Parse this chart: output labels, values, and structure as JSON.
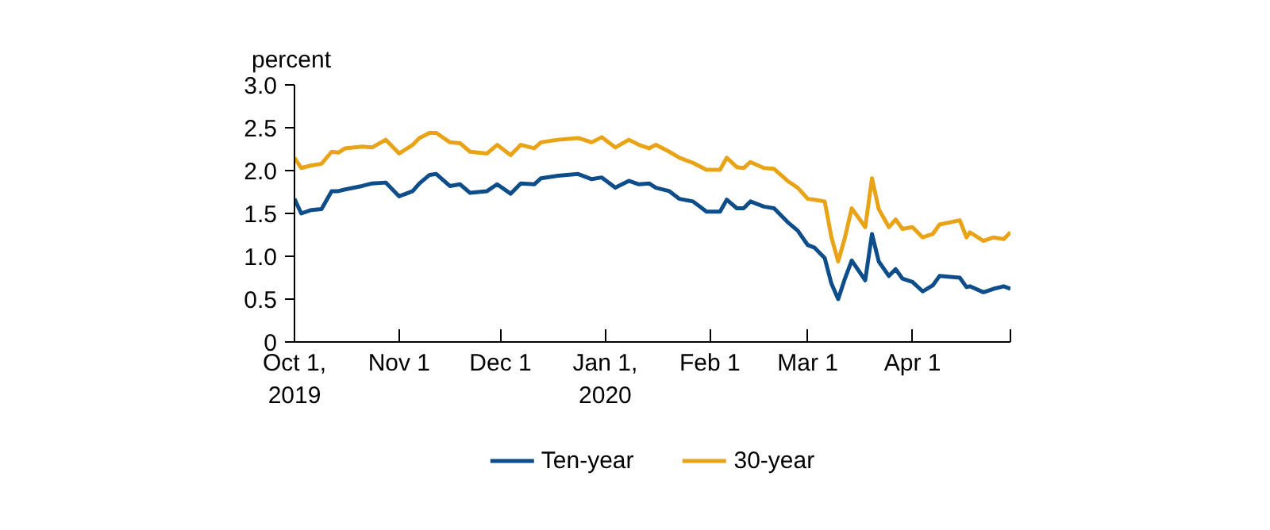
{
  "chart_data": {
    "type": "line",
    "ylabel": "percent",
    "x": [
      "2019-10-01",
      "2019-10-03",
      "2019-10-06",
      "2019-10-09",
      "2019-10-12",
      "2019-10-14",
      "2019-10-16",
      "2019-10-21",
      "2019-10-24",
      "2019-10-28",
      "2019-11-01",
      "2019-11-05",
      "2019-11-07",
      "2019-11-10",
      "2019-11-12",
      "2019-11-16",
      "2019-11-19",
      "2019-11-22",
      "2019-11-27",
      "2019-11-30",
      "2019-12-04",
      "2019-12-07",
      "2019-12-11",
      "2019-12-13",
      "2019-12-18",
      "2019-12-24",
      "2019-12-28",
      "2019-12-31",
      "2020-01-04",
      "2020-01-08",
      "2020-01-11",
      "2020-01-14",
      "2020-01-16",
      "2020-01-20",
      "2020-01-23",
      "2020-01-27",
      "2020-01-31",
      "2020-02-04",
      "2020-02-06",
      "2020-02-09",
      "2020-02-11",
      "2020-02-13",
      "2020-02-17",
      "2020-02-20",
      "2020-02-24",
      "2020-02-27",
      "2020-03-01",
      "2020-03-03",
      "2020-03-06",
      "2020-03-08",
      "2020-03-10",
      "2020-03-12",
      "2020-03-14",
      "2020-03-18",
      "2020-03-20",
      "2020-03-22",
      "2020-03-25",
      "2020-03-27",
      "2020-03-29",
      "2020-04-01",
      "2020-04-04",
      "2020-04-07",
      "2020-04-09",
      "2020-04-15",
      "2020-04-17",
      "2020-04-18",
      "2020-04-22",
      "2020-04-25",
      "2020-04-28",
      "2020-04-30"
    ],
    "series": [
      {
        "name": "Ten-year",
        "color": "#0d4e8a",
        "values": [
          1.67,
          1.5,
          1.54,
          1.55,
          1.76,
          1.76,
          1.78,
          1.82,
          1.85,
          1.86,
          1.7,
          1.76,
          1.85,
          1.95,
          1.96,
          1.82,
          1.84,
          1.74,
          1.76,
          1.84,
          1.73,
          1.85,
          1.84,
          1.91,
          1.94,
          1.96,
          1.9,
          1.92,
          1.8,
          1.88,
          1.84,
          1.85,
          1.8,
          1.76,
          1.67,
          1.64,
          1.52,
          1.52,
          1.66,
          1.56,
          1.56,
          1.64,
          1.58,
          1.56,
          1.4,
          1.3,
          1.13,
          1.1,
          0.98,
          0.68,
          0.5,
          0.74,
          0.95,
          0.72,
          1.26,
          0.94,
          0.77,
          0.85,
          0.74,
          0.7,
          0.59,
          0.66,
          0.77,
          0.75,
          0.64,
          0.65,
          0.58,
          0.62,
          0.65,
          0.62
        ]
      },
      {
        "name": "30-year",
        "color": "#e8a317",
        "values": [
          2.15,
          2.03,
          2.06,
          2.08,
          2.22,
          2.21,
          2.26,
          2.28,
          2.27,
          2.36,
          2.2,
          2.3,
          2.38,
          2.44,
          2.44,
          2.33,
          2.32,
          2.22,
          2.2,
          2.3,
          2.18,
          2.3,
          2.26,
          2.33,
          2.36,
          2.38,
          2.33,
          2.39,
          2.27,
          2.36,
          2.3,
          2.26,
          2.3,
          2.22,
          2.15,
          2.09,
          2.01,
          2.01,
          2.15,
          2.04,
          2.03,
          2.1,
          2.03,
          2.02,
          1.88,
          1.8,
          1.67,
          1.66,
          1.64,
          1.22,
          0.94,
          1.22,
          1.56,
          1.34,
          1.91,
          1.55,
          1.34,
          1.43,
          1.32,
          1.34,
          1.22,
          1.26,
          1.37,
          1.42,
          1.22,
          1.28,
          1.18,
          1.22,
          1.2,
          1.28
        ]
      }
    ],
    "xlim": [
      "2019-10-01",
      "2020-04-30"
    ],
    "xticks": [
      {
        "value": "2019-10-01",
        "label": "Oct 1,\n2019"
      },
      {
        "value": "2019-11-01",
        "label": "Nov 1"
      },
      {
        "value": "2019-12-01",
        "label": "Dec 1"
      },
      {
        "value": "2020-01-01",
        "label": "Jan 1,\n2020"
      },
      {
        "value": "2020-02-01",
        "label": "Feb 1"
      },
      {
        "value": "2020-03-01",
        "label": "Mar 1"
      },
      {
        "value": "2020-04-01",
        "label": "Apr 1"
      },
      {
        "value": "2020-04-30",
        "label": null
      }
    ],
    "ylim": [
      0,
      3
    ],
    "yticks": [
      0,
      {
        "value": 0.5,
        "label": "0.5"
      },
      {
        "value": 1,
        "label": "1.0"
      },
      {
        "value": 1.5,
        "label": "1.5"
      },
      {
        "value": 2,
        "label": "2.0"
      },
      {
        "value": 2.5,
        "label": "2.5"
      },
      {
        "value": 3,
        "label": "3.0"
      }
    ],
    "grid": false,
    "legend": "bottom",
    "marker": "none",
    "line_style": "solid"
  }
}
